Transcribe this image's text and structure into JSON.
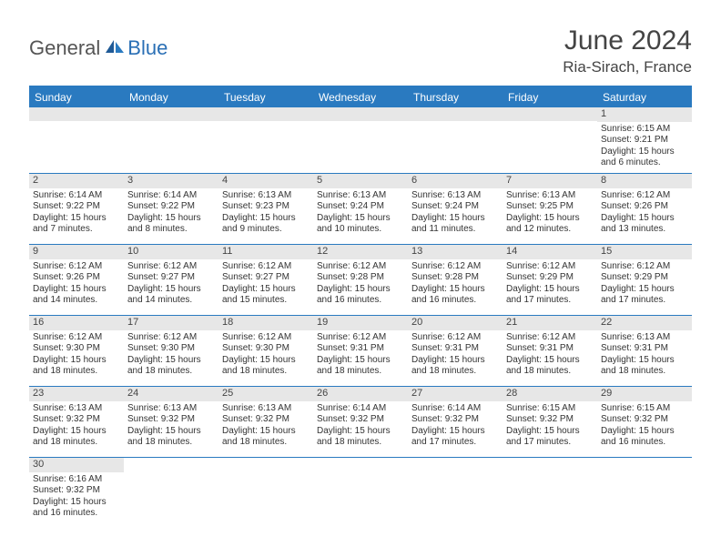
{
  "brand": {
    "part1": "General",
    "part2": "Blue"
  },
  "title": "June 2024",
  "location": "Ria-Sirach, France",
  "colors": {
    "header_bg": "#2a7ac0",
    "header_text": "#ffffff",
    "daynum_bg": "#e7e7e7",
    "cell_border": "#2a7ac0",
    "brand_gray": "#555555",
    "brand_blue": "#2a6fb5",
    "text": "#333333",
    "background": "#ffffff"
  },
  "weekdays": [
    "Sunday",
    "Monday",
    "Tuesday",
    "Wednesday",
    "Thursday",
    "Friday",
    "Saturday"
  ],
  "first_weekday_index": 6,
  "days": [
    {
      "n": "1",
      "sunrise": "Sunrise: 6:15 AM",
      "sunset": "Sunset: 9:21 PM",
      "daylight": "Daylight: 15 hours and 6 minutes."
    },
    {
      "n": "2",
      "sunrise": "Sunrise: 6:14 AM",
      "sunset": "Sunset: 9:22 PM",
      "daylight": "Daylight: 15 hours and 7 minutes."
    },
    {
      "n": "3",
      "sunrise": "Sunrise: 6:14 AM",
      "sunset": "Sunset: 9:22 PM",
      "daylight": "Daylight: 15 hours and 8 minutes."
    },
    {
      "n": "4",
      "sunrise": "Sunrise: 6:13 AM",
      "sunset": "Sunset: 9:23 PM",
      "daylight": "Daylight: 15 hours and 9 minutes."
    },
    {
      "n": "5",
      "sunrise": "Sunrise: 6:13 AM",
      "sunset": "Sunset: 9:24 PM",
      "daylight": "Daylight: 15 hours and 10 minutes."
    },
    {
      "n": "6",
      "sunrise": "Sunrise: 6:13 AM",
      "sunset": "Sunset: 9:24 PM",
      "daylight": "Daylight: 15 hours and 11 minutes."
    },
    {
      "n": "7",
      "sunrise": "Sunrise: 6:13 AM",
      "sunset": "Sunset: 9:25 PM",
      "daylight": "Daylight: 15 hours and 12 minutes."
    },
    {
      "n": "8",
      "sunrise": "Sunrise: 6:12 AM",
      "sunset": "Sunset: 9:26 PM",
      "daylight": "Daylight: 15 hours and 13 minutes."
    },
    {
      "n": "9",
      "sunrise": "Sunrise: 6:12 AM",
      "sunset": "Sunset: 9:26 PM",
      "daylight": "Daylight: 15 hours and 14 minutes."
    },
    {
      "n": "10",
      "sunrise": "Sunrise: 6:12 AM",
      "sunset": "Sunset: 9:27 PM",
      "daylight": "Daylight: 15 hours and 14 minutes."
    },
    {
      "n": "11",
      "sunrise": "Sunrise: 6:12 AM",
      "sunset": "Sunset: 9:27 PM",
      "daylight": "Daylight: 15 hours and 15 minutes."
    },
    {
      "n": "12",
      "sunrise": "Sunrise: 6:12 AM",
      "sunset": "Sunset: 9:28 PM",
      "daylight": "Daylight: 15 hours and 16 minutes."
    },
    {
      "n": "13",
      "sunrise": "Sunrise: 6:12 AM",
      "sunset": "Sunset: 9:28 PM",
      "daylight": "Daylight: 15 hours and 16 minutes."
    },
    {
      "n": "14",
      "sunrise": "Sunrise: 6:12 AM",
      "sunset": "Sunset: 9:29 PM",
      "daylight": "Daylight: 15 hours and 17 minutes."
    },
    {
      "n": "15",
      "sunrise": "Sunrise: 6:12 AM",
      "sunset": "Sunset: 9:29 PM",
      "daylight": "Daylight: 15 hours and 17 minutes."
    },
    {
      "n": "16",
      "sunrise": "Sunrise: 6:12 AM",
      "sunset": "Sunset: 9:30 PM",
      "daylight": "Daylight: 15 hours and 18 minutes."
    },
    {
      "n": "17",
      "sunrise": "Sunrise: 6:12 AM",
      "sunset": "Sunset: 9:30 PM",
      "daylight": "Daylight: 15 hours and 18 minutes."
    },
    {
      "n": "18",
      "sunrise": "Sunrise: 6:12 AM",
      "sunset": "Sunset: 9:30 PM",
      "daylight": "Daylight: 15 hours and 18 minutes."
    },
    {
      "n": "19",
      "sunrise": "Sunrise: 6:12 AM",
      "sunset": "Sunset: 9:31 PM",
      "daylight": "Daylight: 15 hours and 18 minutes."
    },
    {
      "n": "20",
      "sunrise": "Sunrise: 6:12 AM",
      "sunset": "Sunset: 9:31 PM",
      "daylight": "Daylight: 15 hours and 18 minutes."
    },
    {
      "n": "21",
      "sunrise": "Sunrise: 6:12 AM",
      "sunset": "Sunset: 9:31 PM",
      "daylight": "Daylight: 15 hours and 18 minutes."
    },
    {
      "n": "22",
      "sunrise": "Sunrise: 6:13 AM",
      "sunset": "Sunset: 9:31 PM",
      "daylight": "Daylight: 15 hours and 18 minutes."
    },
    {
      "n": "23",
      "sunrise": "Sunrise: 6:13 AM",
      "sunset": "Sunset: 9:32 PM",
      "daylight": "Daylight: 15 hours and 18 minutes."
    },
    {
      "n": "24",
      "sunrise": "Sunrise: 6:13 AM",
      "sunset": "Sunset: 9:32 PM",
      "daylight": "Daylight: 15 hours and 18 minutes."
    },
    {
      "n": "25",
      "sunrise": "Sunrise: 6:13 AM",
      "sunset": "Sunset: 9:32 PM",
      "daylight": "Daylight: 15 hours and 18 minutes."
    },
    {
      "n": "26",
      "sunrise": "Sunrise: 6:14 AM",
      "sunset": "Sunset: 9:32 PM",
      "daylight": "Daylight: 15 hours and 18 minutes."
    },
    {
      "n": "27",
      "sunrise": "Sunrise: 6:14 AM",
      "sunset": "Sunset: 9:32 PM",
      "daylight": "Daylight: 15 hours and 17 minutes."
    },
    {
      "n": "28",
      "sunrise": "Sunrise: 6:15 AM",
      "sunset": "Sunset: 9:32 PM",
      "daylight": "Daylight: 15 hours and 17 minutes."
    },
    {
      "n": "29",
      "sunrise": "Sunrise: 6:15 AM",
      "sunset": "Sunset: 9:32 PM",
      "daylight": "Daylight: 15 hours and 16 minutes."
    },
    {
      "n": "30",
      "sunrise": "Sunrise: 6:16 AM",
      "sunset": "Sunset: 9:32 PM",
      "daylight": "Daylight: 15 hours and 16 minutes."
    }
  ]
}
